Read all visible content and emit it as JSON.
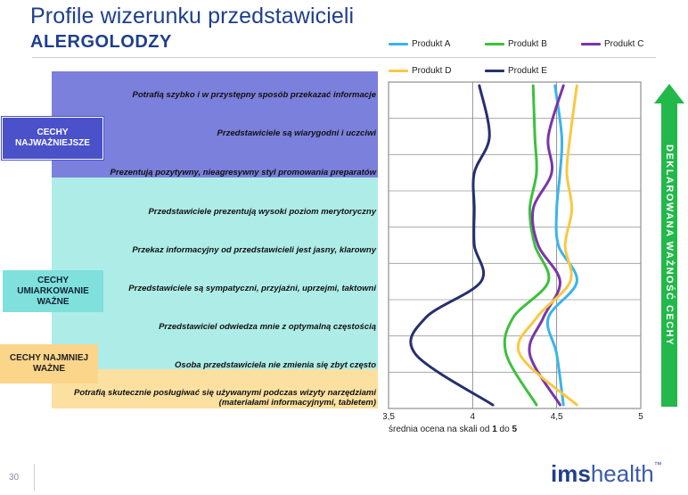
{
  "header": {
    "title": "Profile wizerunku przedstawicieli",
    "subtitle": "ALERGOLODZY"
  },
  "groups": {
    "top": "CECHY NAJWAŻNIEJSZE",
    "mid": "CECHY UMIARKOWANIE WAŻNE",
    "low": "CECHY NAJMNIEJ WAŻNE"
  },
  "arrow_label": "DEKLAROWANA WAŻNOŚĆ CECHY",
  "axis_caption": {
    "prefix": "średnia ocena na skali od ",
    "from": "1",
    "mid": " do ",
    "to": "5"
  },
  "footer": {
    "page_number": "30",
    "logo_part1": "ims",
    "logo_part2": "health",
    "logo_tm": "™"
  },
  "colors": {
    "band_top": "#7b80dc",
    "band_mid": "#aeece8",
    "band_low": "#fbe0a0",
    "arrow": "#22b84a",
    "brand": "#1f3f8c"
  },
  "chart_data": {
    "type": "line",
    "orientation": "horizontal-profile",
    "categories": [
      "Potrafią szybko i w przystępny sposób przekazać informacje",
      "Przedstawiciele są wiarygodni i uczciwi",
      "Prezentują pozytywny, nieagresywny styl promowania preparatów",
      "Przedstawiciele prezentują wysoki poziom merytoryczny",
      "Przekaz informacyjny od przedstawicieli jest jasny, klarowny",
      "Przedstawiciele są sympatyczni, przyjaźni, uprzejmi, taktowni",
      "Przedstawiciel odwiedza mnie z optymalną częstością",
      "Osoba przedstawiciela nie zmienia się zbyt często",
      "Potrafią skutecznie posługiwać się używanymi podczas wizyty narzędziami\n(materiałami informacyjnymi, tabletem)"
    ],
    "xlim": [
      3.5,
      5
    ],
    "xticks": [
      "3,5",
      "4",
      "4,5",
      "5"
    ],
    "xtick_values": [
      3.5,
      4,
      4.5,
      5
    ],
    "grid": true,
    "legend": "top",
    "series": [
      {
        "name": "Produkt A",
        "color": "#3bb3ec",
        "values": [
          4.49,
          4.53,
          4.52,
          4.5,
          4.51,
          4.62,
          4.45,
          4.5,
          4.54
        ]
      },
      {
        "name": "Produkt B",
        "color": "#3cc13c",
        "values": [
          4.36,
          4.37,
          4.38,
          4.34,
          4.37,
          4.45,
          4.24,
          4.2,
          4.38
        ]
      },
      {
        "name": "Produkt C",
        "color": "#7a35a8",
        "values": [
          4.54,
          4.45,
          4.47,
          4.36,
          4.39,
          4.52,
          4.42,
          4.34,
          4.52
        ]
      },
      {
        "name": "Produkt D",
        "color": "#f9c842",
        "values": [
          4.62,
          4.58,
          4.56,
          4.59,
          4.55,
          4.58,
          4.38,
          4.28,
          4.62
        ]
      },
      {
        "name": "Produkt E",
        "color": "#26306e",
        "values": [
          4.04,
          4.1,
          4.01,
          4.01,
          4.01,
          4.05,
          3.72,
          3.66,
          4.12
        ]
      }
    ]
  }
}
